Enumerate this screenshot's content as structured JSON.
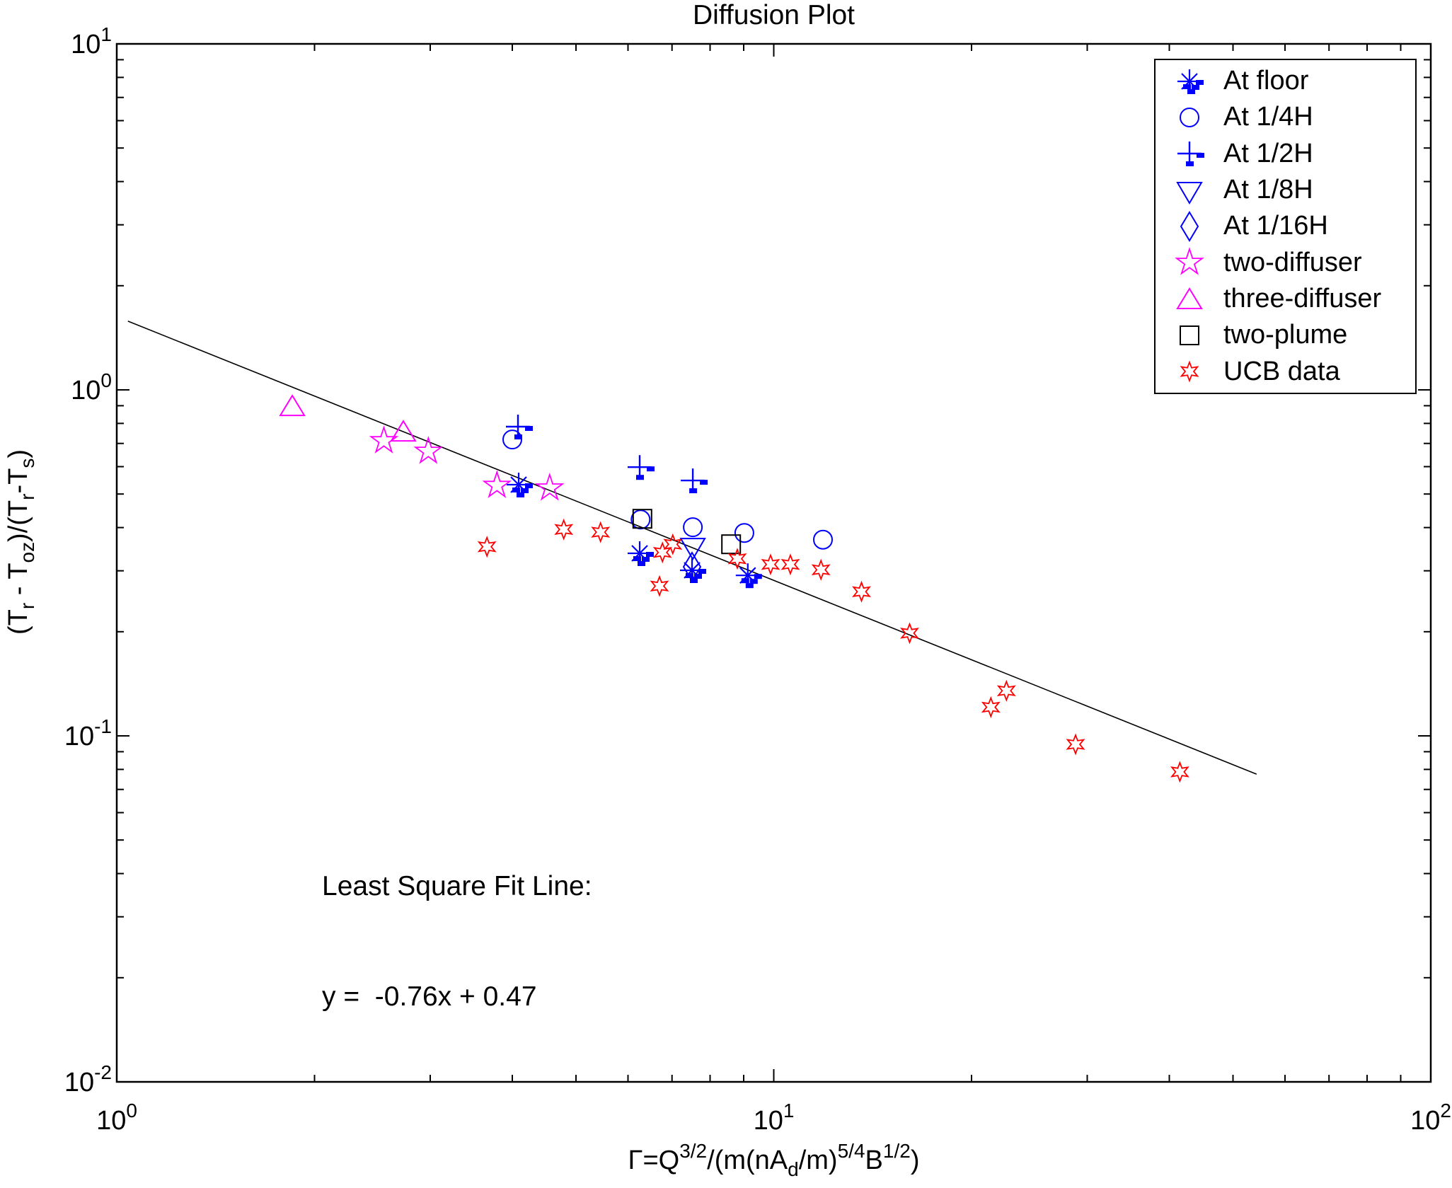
{
  "title": "Diffusion Plot",
  "annotation": {
    "line1": "Least Square Fit Line:",
    "line2": "y =  -0.76x + 0.47"
  },
  "colors": {
    "blue": "#0000ff",
    "magenta": "#ff00ff",
    "red": "#ff0000",
    "black": "#000000"
  },
  "chart_data": {
    "type": "scatter",
    "title": "Diffusion Plot",
    "xscale": "log",
    "yscale": "log",
    "xlim": [
      1,
      100
    ],
    "ylim": [
      0.01,
      10
    ],
    "grid": false,
    "legend_position": "top-right",
    "x_tick_exponents": [
      0,
      1,
      2
    ],
    "y_tick_exponents": [
      1,
      0,
      -1,
      -2
    ],
    "xlabel_segments": [
      {
        "t": "Γ=Q"
      },
      {
        "t": "3/2",
        "sup": true
      },
      {
        "t": "/(m(nA"
      },
      {
        "t": "d",
        "sub": true
      },
      {
        "t": "/m)"
      },
      {
        "t": "5/4",
        "sup": true
      },
      {
        "t": "B"
      },
      {
        "t": "1/2",
        "sup": true
      },
      {
        "t": ")"
      }
    ],
    "ylabel_segments": [
      {
        "t": "(T"
      },
      {
        "t": "r",
        "sub": true
      },
      {
        "t": " - T"
      },
      {
        "t": "oz",
        "sub": true
      },
      {
        "t": ")/(T"
      },
      {
        "t": "r",
        "sub": true
      },
      {
        "t": "-T"
      },
      {
        "t": "s",
        "sub": true
      },
      {
        "t": ")"
      }
    ],
    "series": [
      {
        "name": "At floor",
        "marker": "asterisk",
        "color": "#0000ff",
        "dashes": true,
        "points": [
          [
            4.09,
            0.532
          ],
          [
            6.25,
            0.337
          ],
          [
            7.51,
            0.301
          ],
          [
            9.13,
            0.291
          ]
        ]
      },
      {
        "name": "At 1/4H",
        "marker": "circle",
        "color": "#0000ff",
        "points": [
          [
            4.0,
            0.719
          ],
          [
            6.27,
            0.422
          ],
          [
            7.53,
            0.401
          ],
          [
            9.02,
            0.386
          ],
          [
            11.88,
            0.369
          ]
        ]
      },
      {
        "name": "At 1/2H",
        "marker": "plus",
        "color": "#0000ff",
        "dashes": true,
        "points": [
          [
            4.08,
            0.783
          ],
          [
            6.25,
            0.598
          ],
          [
            7.53,
            0.547
          ]
        ]
      },
      {
        "name": "At 1/8H",
        "marker": "triangle-down",
        "color": "#0000ff",
        "points": [
          [
            7.53,
            0.353
          ]
        ]
      },
      {
        "name": "At 1/16H",
        "marker": "diamond",
        "color": "#0000ff",
        "points": [
          [
            7.51,
            0.308
          ]
        ]
      },
      {
        "name": "two-diffuser",
        "marker": "pentagram",
        "color": "#ff00ff",
        "points": [
          [
            2.55,
            0.712
          ],
          [
            2.98,
            0.664
          ],
          [
            3.79,
            0.529
          ],
          [
            4.56,
            0.52
          ]
        ]
      },
      {
        "name": "three-diffuser",
        "marker": "triangle-up",
        "color": "#ff00ff",
        "points": [
          [
            1.85,
            0.897
          ],
          [
            2.73,
            0.757
          ]
        ]
      },
      {
        "name": "two-plume",
        "marker": "square",
        "color": "#000000",
        "points": [
          [
            6.31,
            0.424
          ],
          [
            8.61,
            0.358
          ]
        ]
      },
      {
        "name": "UCB data",
        "marker": "hexagram",
        "color": "#ff0000",
        "points": [
          [
            3.66,
            0.352
          ],
          [
            4.79,
            0.395
          ],
          [
            5.45,
            0.388
          ],
          [
            7.02,
            0.358
          ],
          [
            6.77,
            0.339
          ],
          [
            6.7,
            0.271
          ],
          [
            8.8,
            0.325
          ],
          [
            9.89,
            0.313
          ],
          [
            10.6,
            0.313
          ],
          [
            11.8,
            0.302
          ],
          [
            13.6,
            0.261
          ],
          [
            16.1,
            0.198
          ],
          [
            22.6,
            0.135
          ],
          [
            21.4,
            0.121
          ],
          [
            28.8,
            0.0945
          ],
          [
            41.5,
            0.0787
          ]
        ]
      }
    ],
    "fit_line": {
      "slope": -0.76,
      "intercept": 0.47,
      "x_start": 1.04,
      "y_start": 1.58,
      "x_end": 54.3,
      "y_end": 0.0775
    }
  }
}
